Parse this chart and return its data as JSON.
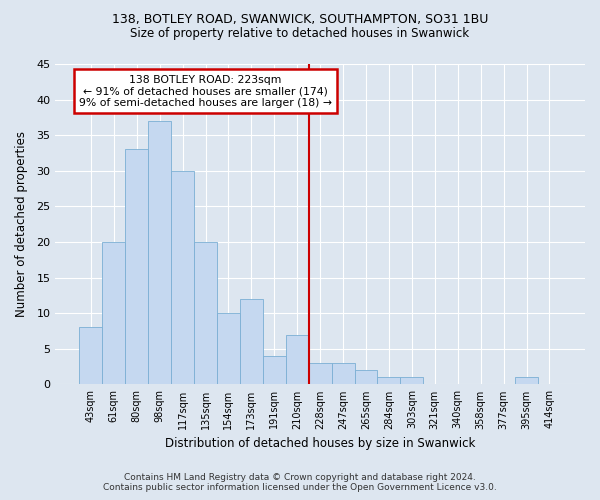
{
  "title1": "138, BOTLEY ROAD, SWANWICK, SOUTHAMPTON, SO31 1BU",
  "title2": "Size of property relative to detached houses in Swanwick",
  "xlabel_bottom": "Distribution of detached houses by size in Swanwick",
  "ylabel": "Number of detached properties",
  "footer1": "Contains HM Land Registry data © Crown copyright and database right 2024.",
  "footer2": "Contains public sector information licensed under the Open Government Licence v3.0.",
  "bar_labels": [
    "43sqm",
    "61sqm",
    "80sqm",
    "98sqm",
    "117sqm",
    "135sqm",
    "154sqm",
    "173sqm",
    "191sqm",
    "210sqm",
    "228sqm",
    "247sqm",
    "265sqm",
    "284sqm",
    "303sqm",
    "321sqm",
    "340sqm",
    "358sqm",
    "377sqm",
    "395sqm",
    "414sqm"
  ],
  "bar_values": [
    8,
    20,
    33,
    37,
    30,
    20,
    10,
    12,
    4,
    7,
    3,
    3,
    2,
    1,
    1,
    0,
    0,
    0,
    0,
    1,
    0
  ],
  "bar_color": "#c5d8f0",
  "bar_edgecolor": "#7bafd4",
  "background_color": "#dde6f0",
  "plot_bg_color": "#dde6f0",
  "grid_color": "#ffffff",
  "vline_x": 9.5,
  "annotation_title": "138 BOTLEY ROAD: 223sqm",
  "annotation_line1": "← 91% of detached houses are smaller (174)",
  "annotation_line2": "9% of semi-detached houses are larger (18) →",
  "annotation_box_facecolor": "#ffffff",
  "annotation_box_edgecolor": "#cc0000",
  "ylim": [
    0,
    45
  ],
  "yticks": [
    0,
    5,
    10,
    15,
    20,
    25,
    30,
    35,
    40,
    45
  ]
}
